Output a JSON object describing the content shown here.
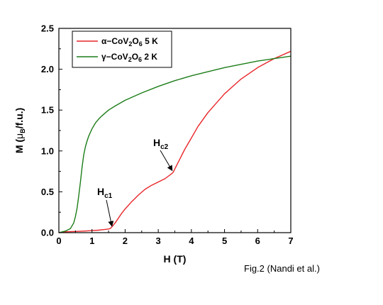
{
  "chart_data": {
    "type": "line",
    "xlabel": "H (T)",
    "ylabel_main": "M (",
    "ylabel_mu": "μ",
    "ylabel_sub": "B",
    "ylabel_tail": "/f.u.)",
    "xlim": [
      0,
      7
    ],
    "ylim": [
      0,
      2.5
    ],
    "xticks": [
      "0",
      "1",
      "2",
      "3",
      "4",
      "5",
      "6",
      "7"
    ],
    "yticks": [
      "0.0",
      "0.5",
      "1.0",
      "1.5",
      "2.0",
      "2.5"
    ],
    "legend_position": "top-left",
    "series": [
      {
        "name": "α−CoV2O6 5 K",
        "legend": {
          "prefix": "α−CoV",
          "sub1": "2",
          "mid": "O",
          "sub2": "6",
          "suffix": " 5 K"
        },
        "color": "#e8262a",
        "x": [
          0,
          0.2,
          0.5,
          0.8,
          1.0,
          1.2,
          1.4,
          1.5,
          1.55,
          1.6,
          1.7,
          1.8,
          1.9,
          2.0,
          2.2,
          2.4,
          2.6,
          2.8,
          3.0,
          3.2,
          3.3,
          3.4,
          3.45,
          3.5,
          3.6,
          3.8,
          4.0,
          4.2,
          4.5,
          5.0,
          5.5,
          6.0,
          6.5,
          7.0
        ],
        "y": [
          0.0,
          0.01,
          0.015,
          0.02,
          0.025,
          0.03,
          0.04,
          0.045,
          0.05,
          0.07,
          0.12,
          0.18,
          0.24,
          0.29,
          0.38,
          0.46,
          0.53,
          0.58,
          0.62,
          0.66,
          0.69,
          0.72,
          0.74,
          0.78,
          0.86,
          1.02,
          1.16,
          1.3,
          1.47,
          1.7,
          1.88,
          2.02,
          2.13,
          2.22
        ]
      },
      {
        "name": "γ−CoV2O6 2 K",
        "legend": {
          "prefix": "γ−CoV",
          "sub1": "2",
          "mid": "O",
          "sub2": "6",
          "suffix": " 2 K"
        },
        "color": "#1c7d18",
        "x": [
          0,
          0.2,
          0.35,
          0.45,
          0.5,
          0.55,
          0.6,
          0.65,
          0.7,
          0.75,
          0.8,
          0.85,
          0.9,
          1.0,
          1.1,
          1.2,
          1.3,
          1.5,
          1.7,
          2.0,
          2.5,
          3.0,
          3.5,
          4.0,
          4.5,
          5.0,
          5.5,
          6.0,
          6.5,
          7.0
        ],
        "y": [
          0.0,
          0.02,
          0.05,
          0.12,
          0.2,
          0.3,
          0.45,
          0.62,
          0.8,
          0.95,
          1.05,
          1.12,
          1.18,
          1.27,
          1.34,
          1.39,
          1.43,
          1.5,
          1.55,
          1.62,
          1.71,
          1.79,
          1.86,
          1.92,
          1.97,
          2.02,
          2.06,
          2.1,
          2.13,
          2.16
        ]
      }
    ],
    "annotations": [
      {
        "name": "Hc1",
        "main": "H",
        "sub": "c1",
        "arrow_to": [
          1.6,
          0.08
        ]
      },
      {
        "name": "Hc2",
        "main": "H",
        "sub": "c2",
        "arrow_to": [
          3.42,
          0.76
        ]
      }
    ]
  },
  "caption": "Fig.2 (Nandi et al.)"
}
